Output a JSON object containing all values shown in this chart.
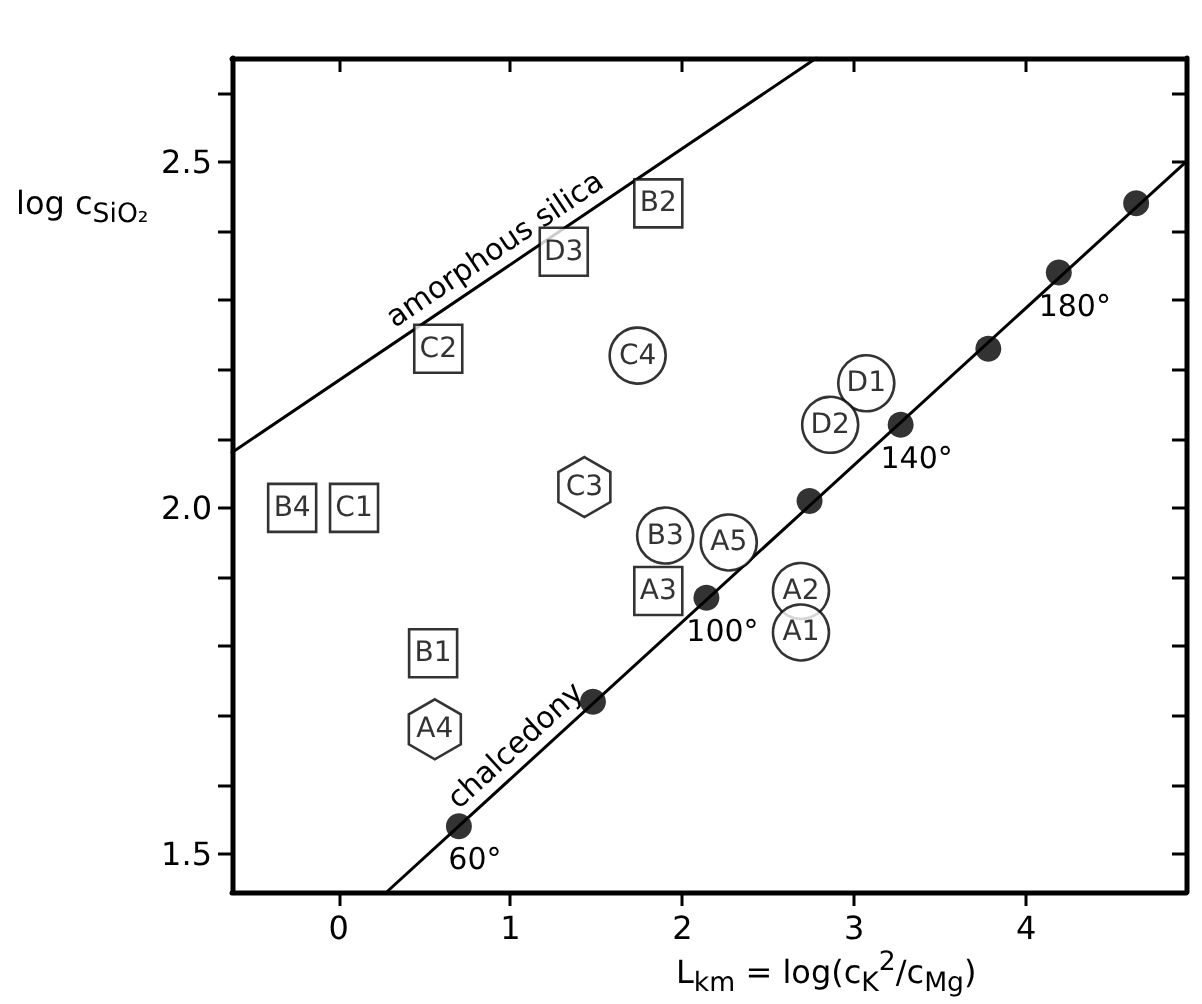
{
  "chart_data": {
    "type": "scatter",
    "xlabel": "L$_{km}$ = log(c$_{K}$$^{2}$/c$_{Mg}$)",
    "ylabel": "log c$_{SiO₂}$",
    "xlim": [
      -0.62,
      4.93
    ],
    "xticks": [
      0,
      1,
      2,
      3,
      4
    ],
    "ylim": [
      1.445,
      2.65
    ],
    "yticks": [
      {
        "value": 1.5,
        "label": "1.5"
      },
      {
        "value": 1.6,
        "label": null
      },
      {
        "value": 1.7,
        "label": null
      },
      {
        "value": 1.8,
        "label": null
      },
      {
        "value": 1.9,
        "label": null
      },
      {
        "value": 2.0,
        "label": "2.0"
      },
      {
        "value": 2.1,
        "label": null
      },
      {
        "value": 2.2,
        "label": null
      },
      {
        "value": 2.3,
        "label": null
      },
      {
        "value": 2.4,
        "label": null
      },
      {
        "value": 2.5,
        "label": "2.5"
      },
      {
        "value": 2.6,
        "label": null
      }
    ],
    "grid": false,
    "legend": false,
    "annotations": [
      {
        "text": "60°",
        "x": 0.7,
        "y": 1.54
      },
      {
        "text": "100°",
        "x": 2.14,
        "y": 1.87
      },
      {
        "text": "140°",
        "x": 3.27,
        "y": 2.12
      },
      {
        "text": "180°",
        "x": 4.19,
        "y": 2.34
      }
    ],
    "series": [
      {
        "name": "amorphous silica",
        "type": "line",
        "color": "#000000",
        "marker": "none",
        "x": [
          -0.62,
          2.78
        ],
        "values": [
          2.08,
          2.65
        ]
      },
      {
        "name": "chalcedony",
        "type": "line",
        "color": "#000000",
        "marker": "none",
        "x": [
          0.28,
          4.93
        ],
        "values": [
          1.445,
          2.5
        ]
      },
      {
        "color": "#000000",
        "marker": "circle",
        "x": [
          0.7,
          1.48,
          2.14,
          2.74,
          3.27,
          3.78,
          4.19,
          4.64
        ],
        "values": [
          1.54,
          1.72,
          1.87,
          2.01,
          2.12,
          2.23,
          2.34,
          2.44
        ]
      },
      {
        "color": "#000000",
        "marker": "square",
        "x": [
          -0.27,
          0.09,
          0.58,
          1.31,
          1.86,
          1.86,
          0.55
        ],
        "values": [
          2.0,
          2.0,
          2.23,
          2.37,
          2.44,
          1.88,
          1.79
        ],
        "value_labels": [
          "B4",
          "C1",
          "C2",
          "D3",
          "B2",
          "A3",
          "B1"
        ]
      },
      {
        "color": "#000000",
        "marker": "circle",
        "x": [
          1.74,
          1.9,
          2.27,
          2.69,
          2.69,
          3.07,
          2.86
        ],
        "values": [
          2.22,
          1.96,
          1.95,
          1.88,
          1.82,
          2.18,
          2.12
        ],
        "value_labels": [
          "C4",
          "B3",
          "A5",
          "A2",
          "A1",
          "D1",
          "D2"
        ]
      },
      {
        "color": "#000000",
        "x": [
          1.43,
          0.56
        ],
        "values": [
          2.03,
          1.68
        ],
        "value_labels": [
          "C3",
          "A4"
        ]
      }
    ]
  }
}
